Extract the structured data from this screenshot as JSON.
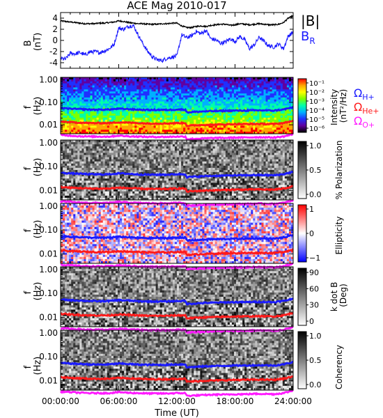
{
  "title": "ACE Mag 2010-017",
  "x_axis": {
    "label": "Time (UT)",
    "ticks": [
      "00:00:00",
      "06:00:00",
      "12:00:00",
      "18:00:00",
      "24:00:00"
    ],
    "range_hours": [
      0,
      24
    ]
  },
  "legend_top": {
    "items": [
      {
        "label": "|B|",
        "color": "#000000"
      },
      {
        "label": "B",
        "sub": "R",
        "color": "#1a1aff"
      }
    ]
  },
  "legend_cyclotron": {
    "items": [
      {
        "label": "Ω",
        "sub": "H+",
        "color": "#1a1aff"
      },
      {
        "label": "Ω",
        "sub": "He+",
        "color": "#ff1a1a"
      },
      {
        "label": "Ω",
        "sub": "O+",
        "color": "#ff1aff"
      }
    ]
  },
  "panels": [
    {
      "ylabel1": "B",
      "ylabel2": "(nT)"
    },
    {
      "ylabel1": "f",
      "ylabel2": "(Hz)",
      "cbar_title": "Intensity",
      "cbar_title2": "(nT²/Hz)"
    },
    {
      "ylabel1": "f",
      "ylabel2": "(Hz)",
      "cbar_title": "% Polarization"
    },
    {
      "ylabel1": "f",
      "ylabel2": "(Hz)",
      "cbar_title": "Ellipticity"
    },
    {
      "ylabel1": "f",
      "ylabel2": "(Hz)",
      "cbar_title": "k dot B",
      "cbar_title2": "(Deg)"
    },
    {
      "ylabel1": "f",
      "ylabel2": "(Hz)",
      "cbar_title": "Coherency"
    }
  ],
  "colorbars": {
    "intensity": {
      "ticks": [
        "10⁻¹",
        "10⁻²",
        "10⁻³",
        "10⁻⁴",
        "10⁻⁵",
        "10⁻⁶"
      ],
      "colors": [
        "#ff0000",
        "#ffa500",
        "#ffff00",
        "#7cff00",
        "#00ffaa",
        "#00b0ff",
        "#2030ff",
        "#6000a0",
        "#000000"
      ]
    },
    "polarization": {
      "ticks": [
        "1.0",
        "0.5",
        "0.0"
      ]
    },
    "ellipticity": {
      "ticks": [
        "1",
        "0",
        "−1"
      ]
    },
    "kdotb": {
      "ticks": [
        "90",
        "60",
        "30",
        "0"
      ]
    },
    "coherency": {
      "ticks": [
        "1.0",
        "0.5",
        "0.0"
      ]
    }
  },
  "chart_data": [
    {
      "type": "line",
      "title": "ACE Mag 2010-017",
      "ylabel": "B (nT)",
      "ylim": [
        -5,
        5
      ],
      "yticks": [
        "4",
        "2",
        "0",
        "-2",
        "-4"
      ],
      "x": [
        0,
        0.5,
        1,
        1.5,
        2,
        2.5,
        3,
        3.5,
        4,
        4.5,
        5,
        5.5,
        6,
        6.5,
        7,
        7.5,
        8,
        8.5,
        9,
        9.5,
        10,
        10.5,
        11,
        11.5,
        12,
        12.5,
        13,
        13.5,
        14,
        14.5,
        15,
        15.5,
        16,
        16.5,
        17,
        17.5,
        18,
        18.5,
        19,
        19.5,
        20,
        20.5,
        21,
        21.5,
        22,
        22.5,
        23,
        23.5,
        24
      ],
      "series": [
        {
          "name": "|B|",
          "color": "#000000",
          "values": [
            3.5,
            3.4,
            3.3,
            3.2,
            3.1,
            3.0,
            3.0,
            3.0,
            3.1,
            3.1,
            3.2,
            3.3,
            3.5,
            3.4,
            3.2,
            3.1,
            3.0,
            3.0,
            2.9,
            2.9,
            2.9,
            3.0,
            3.0,
            3.1,
            3.1,
            2.6,
            2.3,
            2.3,
            2.5,
            2.6,
            2.5,
            2.7,
            2.8,
            2.9,
            2.9,
            2.7,
            2.8,
            3.0,
            2.9,
            2.8,
            2.9,
            3.0,
            2.9,
            2.8,
            2.8,
            2.9,
            3.2,
            4.0,
            4.4
          ]
        },
        {
          "name": "B",
          "color": "#1a1aff",
          "values": [
            -3.2,
            -3.4,
            -2.3,
            -2.4,
            -2.2,
            -2.6,
            -2.1,
            -2.0,
            -2.2,
            -1.9,
            -1.5,
            -0.8,
            2.2,
            2.0,
            2.5,
            2.7,
            1.0,
            -0.6,
            -2.0,
            -3.0,
            -3.5,
            -3.6,
            -3.2,
            -3.0,
            -2.8,
            1.0,
            0.5,
            0.8,
            1.6,
            1.2,
            1.8,
            0.3,
            0.1,
            -0.5,
            -0.3,
            0.3,
            -0.2,
            0.7,
            0.1,
            -1.5,
            -0.8,
            0.6,
            -0.2,
            -1.0,
            -1.2,
            -0.6,
            -1.5,
            0.8,
            1.5
          ]
        }
      ]
    },
    {
      "type": "heatmap",
      "name": "Intensity spectrogram",
      "ylabel": "f (Hz)",
      "yticks": [
        "1.00",
        "0.10",
        "0.01"
      ],
      "ylim": [
        0.004,
        1.3
      ],
      "cbar_label": "Intensity (nT²/Hz)",
      "cbar_range": [
        "1e-6",
        "1e-1"
      ]
    },
    {
      "type": "heatmap",
      "name": "% Polarization",
      "ylabel": "f (Hz)",
      "yticks": [
        "1.00",
        "0.10",
        "0.01"
      ],
      "cbar_range": [
        0,
        1
      ]
    },
    {
      "type": "heatmap",
      "name": "Ellipticity",
      "ylabel": "f (Hz)",
      "yticks": [
        "1.00",
        "0.10",
        "0.01"
      ],
      "cbar_range": [
        -1,
        1
      ]
    },
    {
      "type": "heatmap",
      "name": "k dot B (Deg)",
      "ylabel": "f (Hz)",
      "yticks": [
        "1.00",
        "0.10",
        "0.01"
      ],
      "cbar_range": [
        0,
        90
      ]
    },
    {
      "type": "heatmap",
      "name": "Coherency",
      "ylabel": "f (Hz)",
      "yticks": [
        "1.00",
        "0.10",
        "0.01"
      ],
      "cbar_range": [
        0,
        1
      ]
    },
    {
      "type": "line",
      "name": "Ion cyclotron frequencies (overlay on all spectral panels)",
      "ylabel": "f (Hz)",
      "x": [
        0,
        1,
        2,
        3,
        4,
        5,
        6,
        7,
        8,
        9,
        10,
        11,
        12,
        12.9,
        13,
        14,
        15,
        16,
        17,
        18,
        19,
        20,
        21,
        22,
        23,
        24
      ],
      "series": [
        {
          "name": "Ω H+",
          "color": "#1a1aff",
          "values": [
            0.055,
            0.052,
            0.05,
            0.048,
            0.047,
            0.048,
            0.052,
            0.05,
            0.047,
            0.046,
            0.046,
            0.046,
            0.048,
            0.048,
            0.036,
            0.038,
            0.04,
            0.041,
            0.042,
            0.043,
            0.043,
            0.044,
            0.044,
            0.043,
            0.048,
            0.06
          ]
        },
        {
          "name": "Ω He+",
          "color": "#ff1a1a",
          "values": [
            0.014,
            0.013,
            0.0125,
            0.012,
            0.012,
            0.012,
            0.013,
            0.0125,
            0.012,
            0.0115,
            0.0115,
            0.0115,
            0.012,
            0.012,
            0.009,
            0.0095,
            0.01,
            0.0102,
            0.0105,
            0.0108,
            0.0108,
            0.011,
            0.011,
            0.0108,
            0.012,
            0.015
          ]
        },
        {
          "name": "Ω O+",
          "color": "#ff1aff",
          "values": [
            0.0035,
            0.0033,
            0.0031,
            0.003,
            0.003,
            0.003,
            0.0033,
            0.0031,
            0.003,
            0.0029,
            0.0029,
            0.0029,
            0.003,
            0.003,
            0.0023,
            0.0024,
            0.0025,
            0.0026,
            0.0026,
            0.0027,
            0.0027,
            0.0028,
            0.0028,
            0.0027,
            0.003,
            0.0038
          ]
        }
      ]
    }
  ]
}
